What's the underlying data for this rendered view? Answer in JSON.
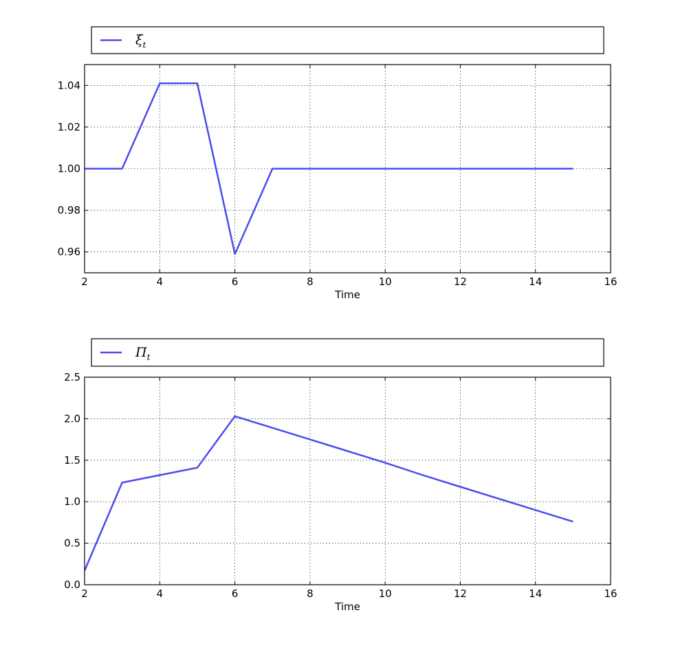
{
  "chart_data": [
    {
      "type": "line",
      "xlabel": "Time",
      "ylabel": "",
      "xlim": [
        2,
        16
      ],
      "ylim": [
        0.95,
        1.05
      ],
      "x_ticks": [
        2,
        4,
        6,
        8,
        10,
        12,
        14,
        16
      ],
      "y_ticks": [
        0.96,
        0.98,
        1.0,
        1.02,
        1.04
      ],
      "y_tick_labels": [
        "0.96",
        "0.98",
        "1.00",
        "1.02",
        "1.04"
      ],
      "grid": true,
      "legend_position": "top",
      "series": [
        {
          "name": "ξ",
          "subscript": "t",
          "color": "#4b4bef",
          "x": [
            2,
            3,
            4,
            5,
            6,
            7,
            8,
            9,
            10,
            11,
            12,
            13,
            14,
            15
          ],
          "y": [
            1.0,
            1.0,
            1.041,
            1.041,
            0.959,
            1.0,
            1.0,
            1.0,
            1.0,
            1.0,
            1.0,
            1.0,
            1.0,
            1.0
          ]
        }
      ]
    },
    {
      "type": "line",
      "xlabel": "Time",
      "ylabel": "",
      "xlim": [
        2,
        16
      ],
      "ylim": [
        0.0,
        2.5
      ],
      "x_ticks": [
        2,
        4,
        6,
        8,
        10,
        12,
        14,
        16
      ],
      "y_ticks": [
        0.0,
        0.5,
        1.0,
        1.5,
        2.0,
        2.5
      ],
      "y_tick_labels": [
        "0.0",
        "0.5",
        "1.0",
        "1.5",
        "2.0",
        "2.5"
      ],
      "grid": true,
      "legend_position": "top",
      "series": [
        {
          "name": "Π",
          "subscript": "t",
          "color": "#4b4bef",
          "x": [
            2,
            3,
            4,
            5,
            6,
            7,
            8,
            9,
            10,
            11,
            12,
            13,
            14,
            15
          ],
          "y": [
            0.17,
            1.23,
            1.32,
            1.41,
            2.03,
            1.89,
            1.75,
            1.61,
            1.47,
            1.32,
            1.18,
            1.04,
            0.9,
            0.76
          ]
        }
      ]
    }
  ]
}
